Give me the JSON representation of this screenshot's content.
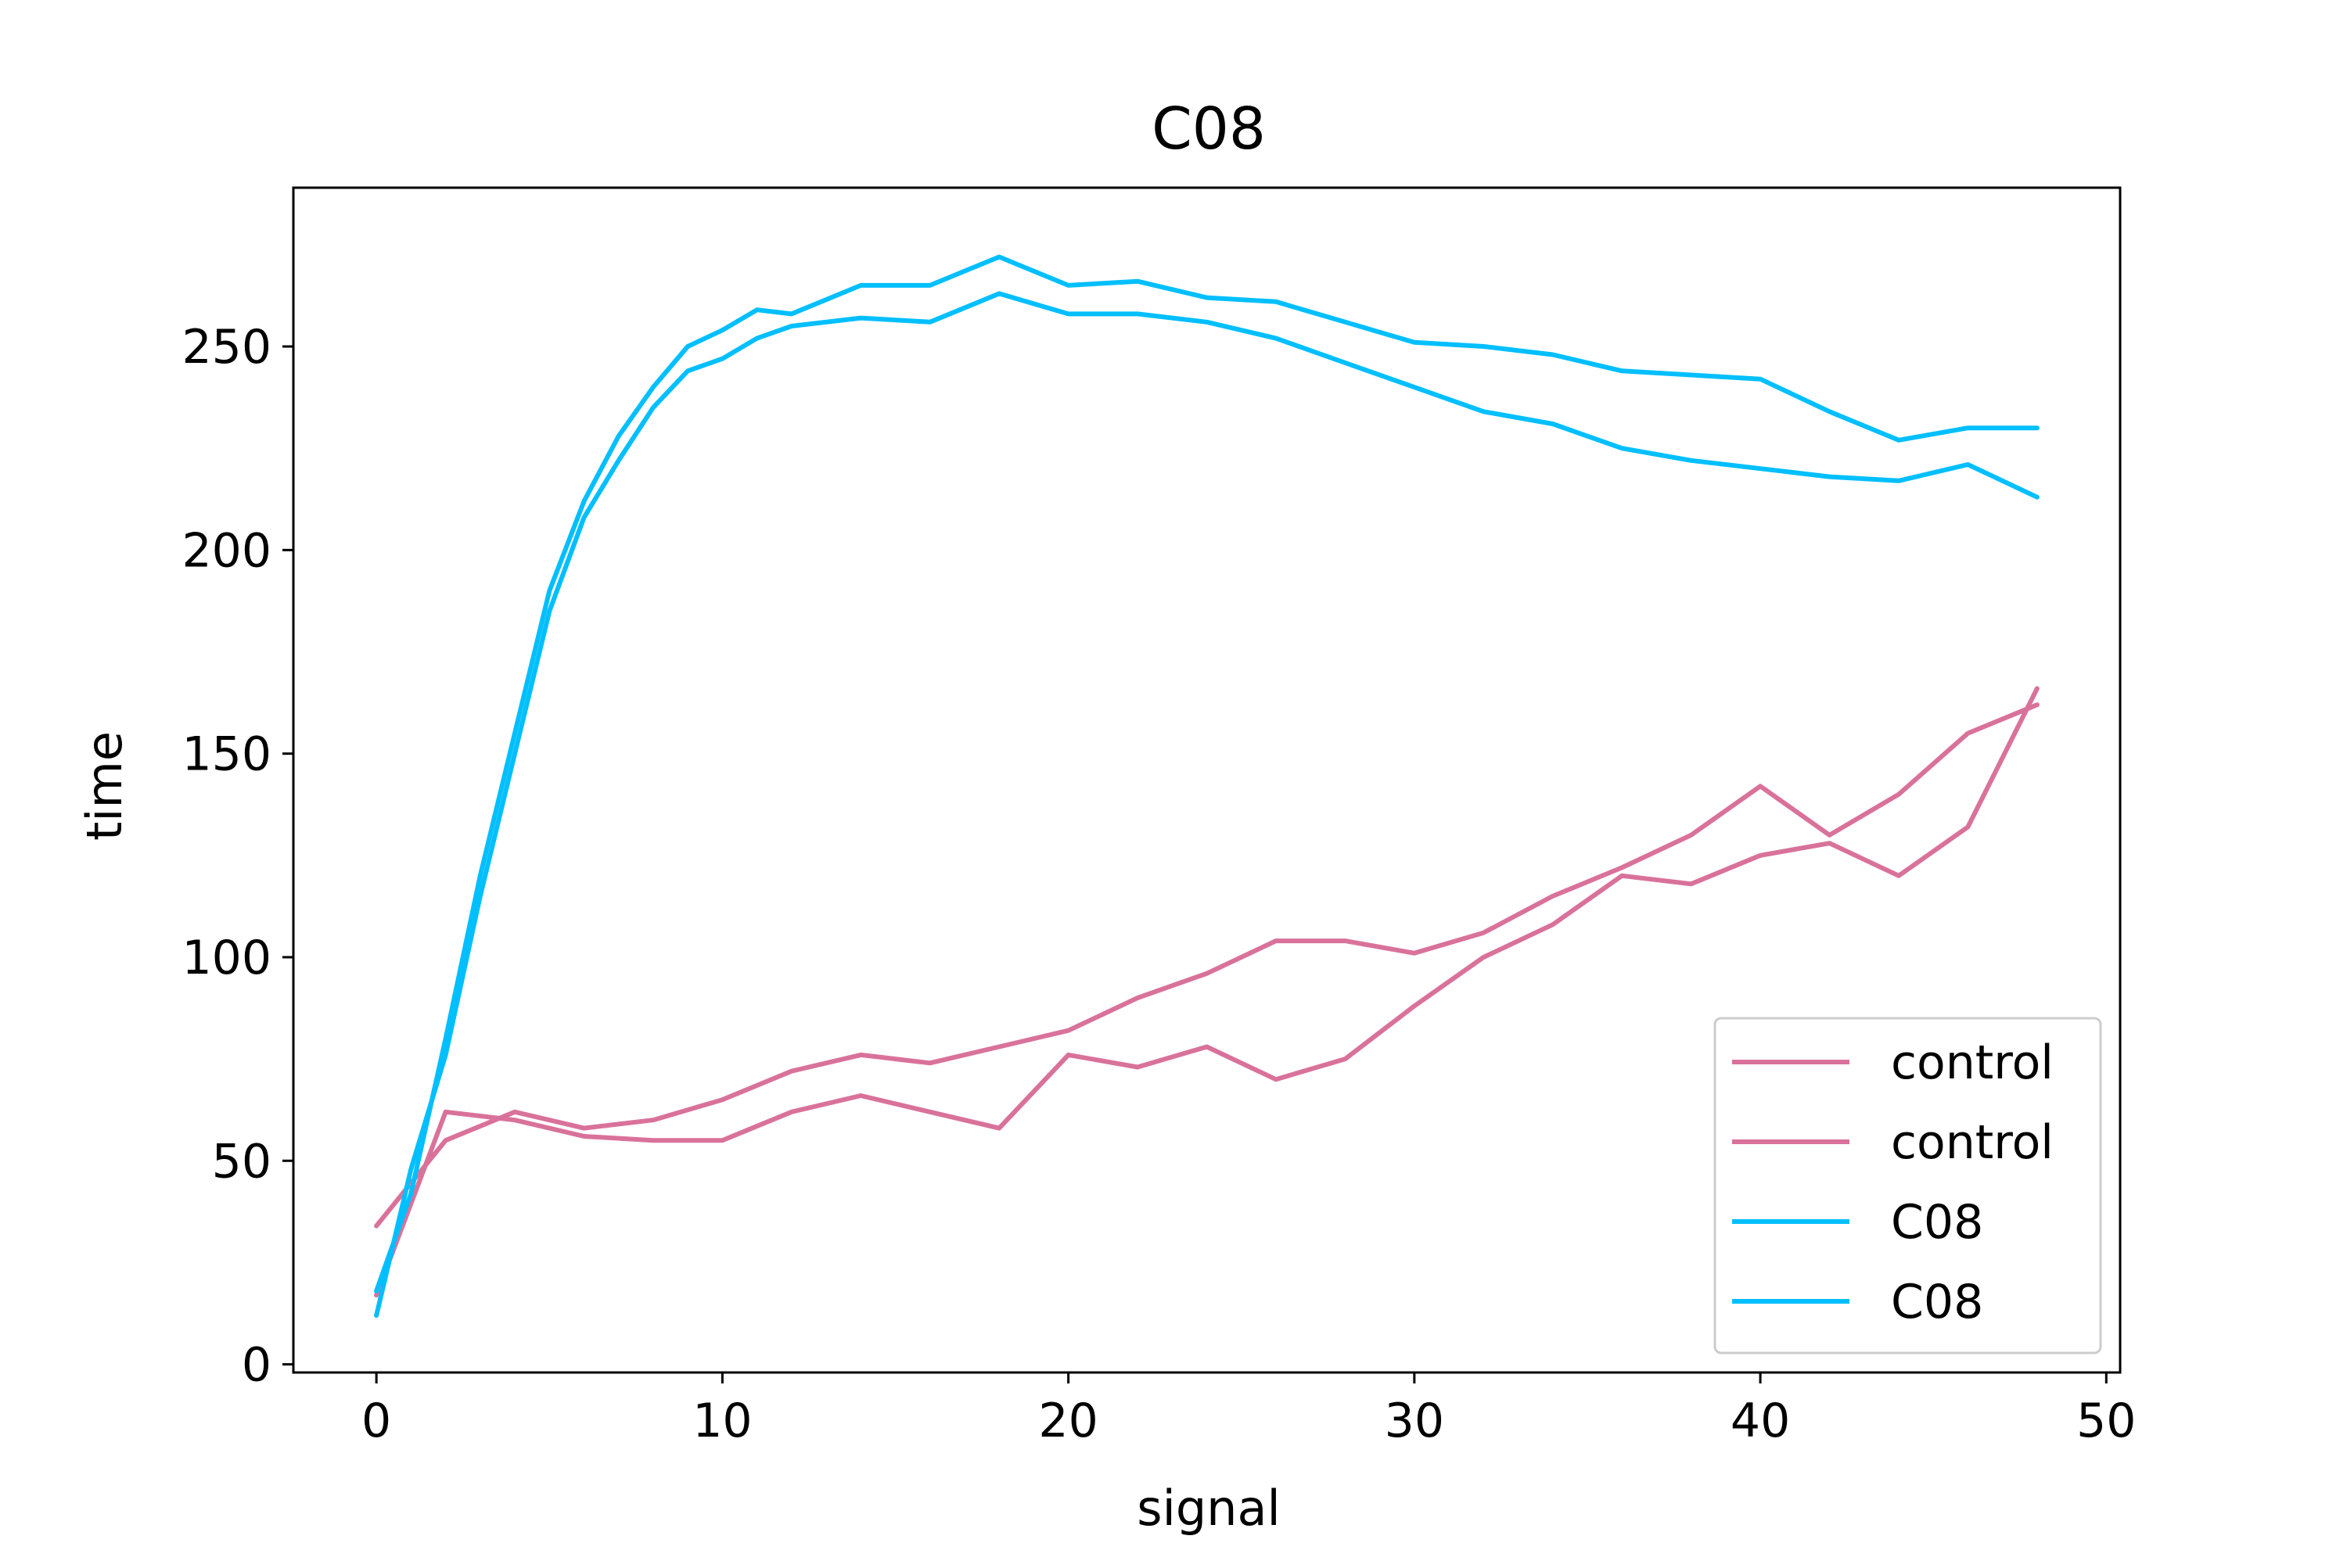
{
  "chart_data": {
    "type": "line",
    "title": "C08",
    "xlabel": "signal",
    "ylabel": "time",
    "xlim": [
      -2.4,
      50.4
    ],
    "ylim": [
      -2,
      289
    ],
    "xticks": [
      0,
      10,
      20,
      30,
      40,
      50
    ],
    "yticks": [
      0,
      50,
      100,
      150,
      200,
      250
    ],
    "grid": false,
    "legend_position": "lower right",
    "series": [
      {
        "name": "control",
        "color": "#d9729a",
        "x": [
          0,
          2,
          4,
          6,
          8,
          10,
          12,
          14,
          16,
          18,
          20,
          22,
          24,
          26,
          28,
          30,
          32,
          34,
          36,
          38,
          40,
          42,
          44,
          46,
          48
        ],
        "y": [
          34,
          55,
          62,
          58,
          60,
          65,
          72,
          76,
          74,
          78,
          82,
          90,
          96,
          104,
          104,
          101,
          106,
          115,
          122,
          130,
          142,
          130,
          140,
          155,
          162
        ]
      },
      {
        "name": "control",
        "color": "#d9729a",
        "x": [
          0,
          2,
          4,
          6,
          8,
          10,
          12,
          14,
          16,
          18,
          20,
          22,
          24,
          26,
          28,
          30,
          32,
          34,
          36,
          38,
          40,
          42,
          44,
          46,
          48
        ],
        "y": [
          17,
          62,
          60,
          56,
          55,
          55,
          62,
          66,
          62,
          58,
          76,
          73,
          78,
          70,
          75,
          88,
          100,
          108,
          120,
          118,
          125,
          128,
          120,
          132,
          166
        ]
      },
      {
        "name": "C08",
        "color": "#00bfff",
        "x": [
          0,
          1,
          2,
          3,
          4,
          5,
          6,
          7,
          8,
          9,
          10,
          11,
          12,
          14,
          16,
          18,
          20,
          22,
          24,
          26,
          28,
          30,
          32,
          34,
          36,
          38,
          40,
          42,
          44,
          46,
          48
        ],
        "y": [
          18,
          42,
          80,
          120,
          155,
          190,
          212,
          228,
          240,
          250,
          254,
          259,
          258,
          265,
          265,
          272,
          265,
          266,
          262,
          261,
          256,
          251,
          250,
          248,
          244,
          243,
          242,
          234,
          227,
          230,
          230
        ]
      },
      {
        "name": "C08",
        "color": "#00bfff",
        "x": [
          0,
          1,
          2,
          3,
          4,
          5,
          6,
          7,
          8,
          9,
          10,
          11,
          12,
          14,
          16,
          18,
          20,
          22,
          24,
          26,
          28,
          30,
          32,
          34,
          36,
          38,
          40,
          42,
          44,
          46,
          48
        ],
        "y": [
          12,
          48,
          76,
          115,
          150,
          185,
          208,
          222,
          235,
          244,
          247,
          252,
          255,
          257,
          256,
          263,
          258,
          258,
          256,
          252,
          246,
          240,
          234,
          231,
          225,
          222,
          220,
          218,
          217,
          221,
          213
        ]
      }
    ]
  }
}
